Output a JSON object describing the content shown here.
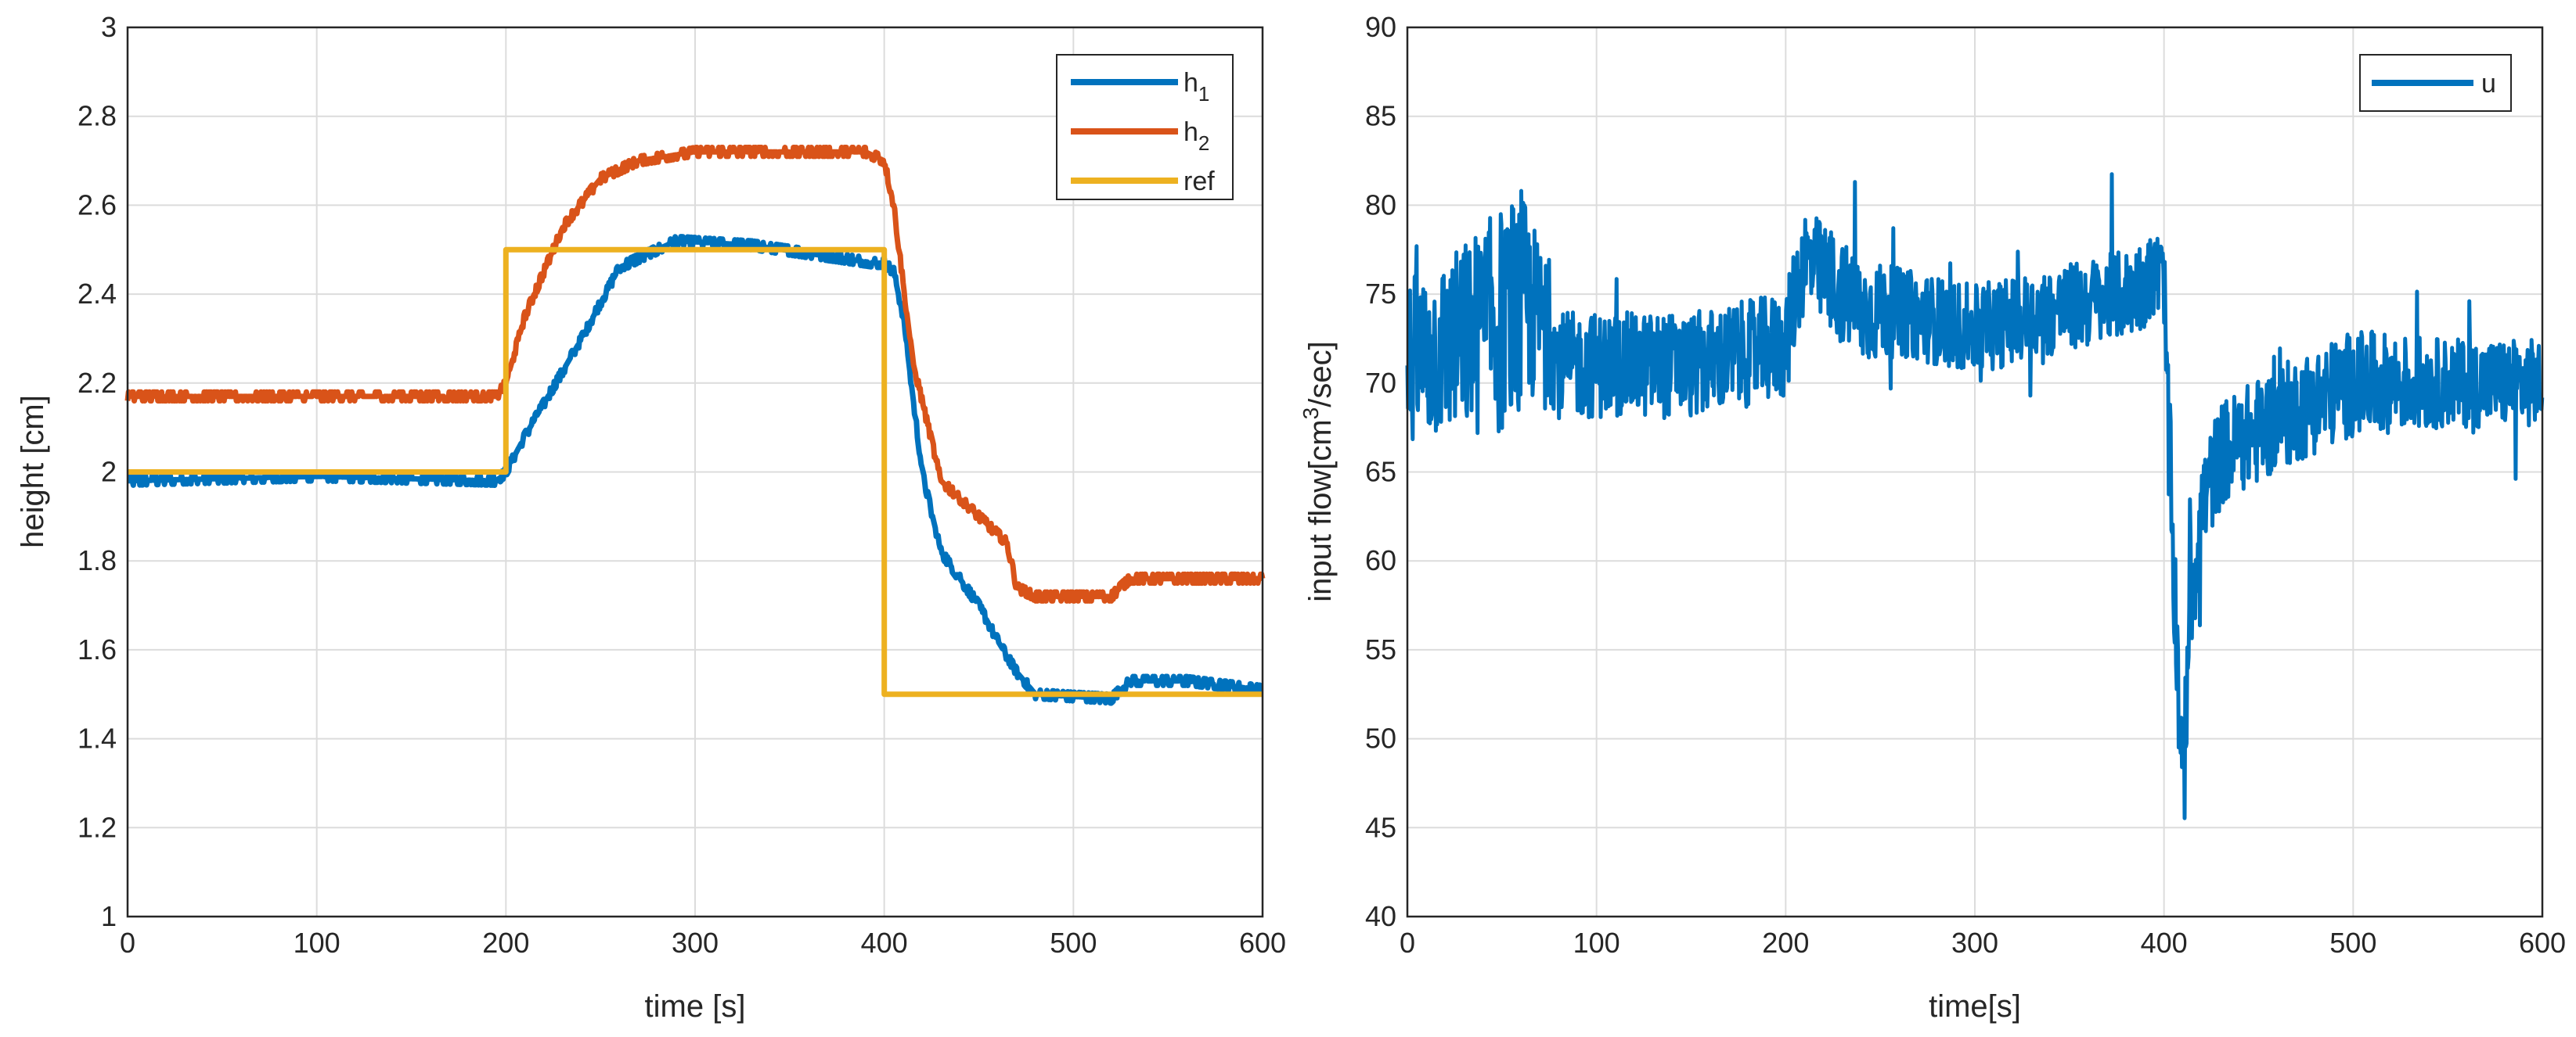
{
  "colors": {
    "h1": "#0072BD",
    "h2": "#D95319",
    "ref": "#EDB120",
    "u": "#0072BD",
    "axis": "#262626",
    "grid": "#dcdcdc"
  },
  "chart_data": [
    {
      "type": "line",
      "xlabel": "time [s]",
      "ylabel": "height [cm]",
      "xlim": [
        0,
        600
      ],
      "ylim": [
        1,
        3
      ],
      "xticks": [
        "0",
        "100",
        "200",
        "300",
        "400",
        "500",
        "600"
      ],
      "yticks": [
        "1",
        "1.2",
        "1.4",
        "1.6",
        "1.8",
        "2",
        "2.2",
        "2.4",
        "2.6",
        "2.8",
        "3"
      ],
      "grid": true,
      "legend_position": "top-right",
      "series": [
        {
          "name": "h1",
          "legend_base": "h",
          "legend_sub": "1",
          "color": "#0072BD",
          "x": [
            0,
            100,
            195,
            200,
            210,
            240,
            260,
            290,
            330,
            395,
            400,
            405,
            410,
            420,
            430,
            450,
            460,
            470,
            480,
            520,
            530,
            560,
            600
          ],
          "y": [
            1.98,
            1.99,
            1.98,
            2.0,
            2.08,
            2.3,
            2.46,
            2.52,
            2.51,
            2.47,
            2.47,
            2.45,
            2.35,
            2.0,
            1.82,
            1.7,
            1.62,
            1.55,
            1.5,
            1.49,
            1.53,
            1.53,
            1.51
          ]
        },
        {
          "name": "h2",
          "legend_base": "h",
          "legend_sub": "2",
          "color": "#D95319",
          "x": [
            0,
            100,
            195,
            200,
            210,
            230,
            250,
            270,
            300,
            390,
            400,
            405,
            415,
            430,
            450,
            465,
            470,
            480,
            520,
            530,
            560,
            600
          ],
          "y": [
            2.17,
            2.17,
            2.17,
            2.2,
            2.35,
            2.55,
            2.66,
            2.7,
            2.72,
            2.72,
            2.7,
            2.6,
            2.25,
            1.98,
            1.9,
            1.84,
            1.74,
            1.72,
            1.72,
            1.76,
            1.76,
            1.76
          ]
        },
        {
          "name": "ref",
          "legend_base": "ref",
          "legend_sub": "",
          "color": "#EDB120",
          "x": [
            0,
            200,
            200,
            400,
            400,
            600
          ],
          "y": [
            2.0,
            2.0,
            2.5,
            2.5,
            1.5,
            1.5
          ]
        }
      ]
    },
    {
      "type": "line",
      "xlabel": "time[s]",
      "ylabel_prefix": "input flow[cm",
      "ylabel_sup": "3",
      "ylabel_suffix": "/sec]",
      "xlim": [
        0,
        600
      ],
      "ylim": [
        40,
        90
      ],
      "xticks": [
        "0",
        "100",
        "200",
        "300",
        "400",
        "500",
        "600"
      ],
      "yticks": [
        "40",
        "45",
        "50",
        "55",
        "60",
        "65",
        "70",
        "75",
        "80",
        "85",
        "90"
      ],
      "grid": true,
      "legend_position": "top-right",
      "series": [
        {
          "name": "u",
          "legend_base": "u",
          "color": "#0072BD",
          "x": [
            0,
            20,
            40,
            60,
            70,
            80,
            100,
            150,
            195,
            200,
            205,
            210,
            220,
            240,
            260,
            300,
            340,
            380,
            395,
            400,
            402,
            405,
            408,
            410,
            413,
            420,
            430,
            460,
            500,
            550,
            600
          ],
          "y": [
            71,
            72,
            73,
            74,
            74,
            71,
            71,
            71,
            72,
            72,
            75,
            77,
            76,
            74,
            74,
            73,
            74,
            75,
            76,
            76,
            68,
            60,
            52,
            46,
            57,
            63,
            66,
            68,
            70,
            70,
            70
          ],
          "noise_amp": [
            5,
            5,
            6,
            7,
            4,
            3,
            3,
            3,
            3,
            3,
            3,
            3,
            3,
            3,
            2.5,
            2.5,
            2.5,
            2.5,
            2.5,
            2.5,
            4,
            4,
            4,
            4,
            4,
            3,
            3,
            3,
            3,
            2.5,
            2.5
          ]
        }
      ]
    }
  ]
}
